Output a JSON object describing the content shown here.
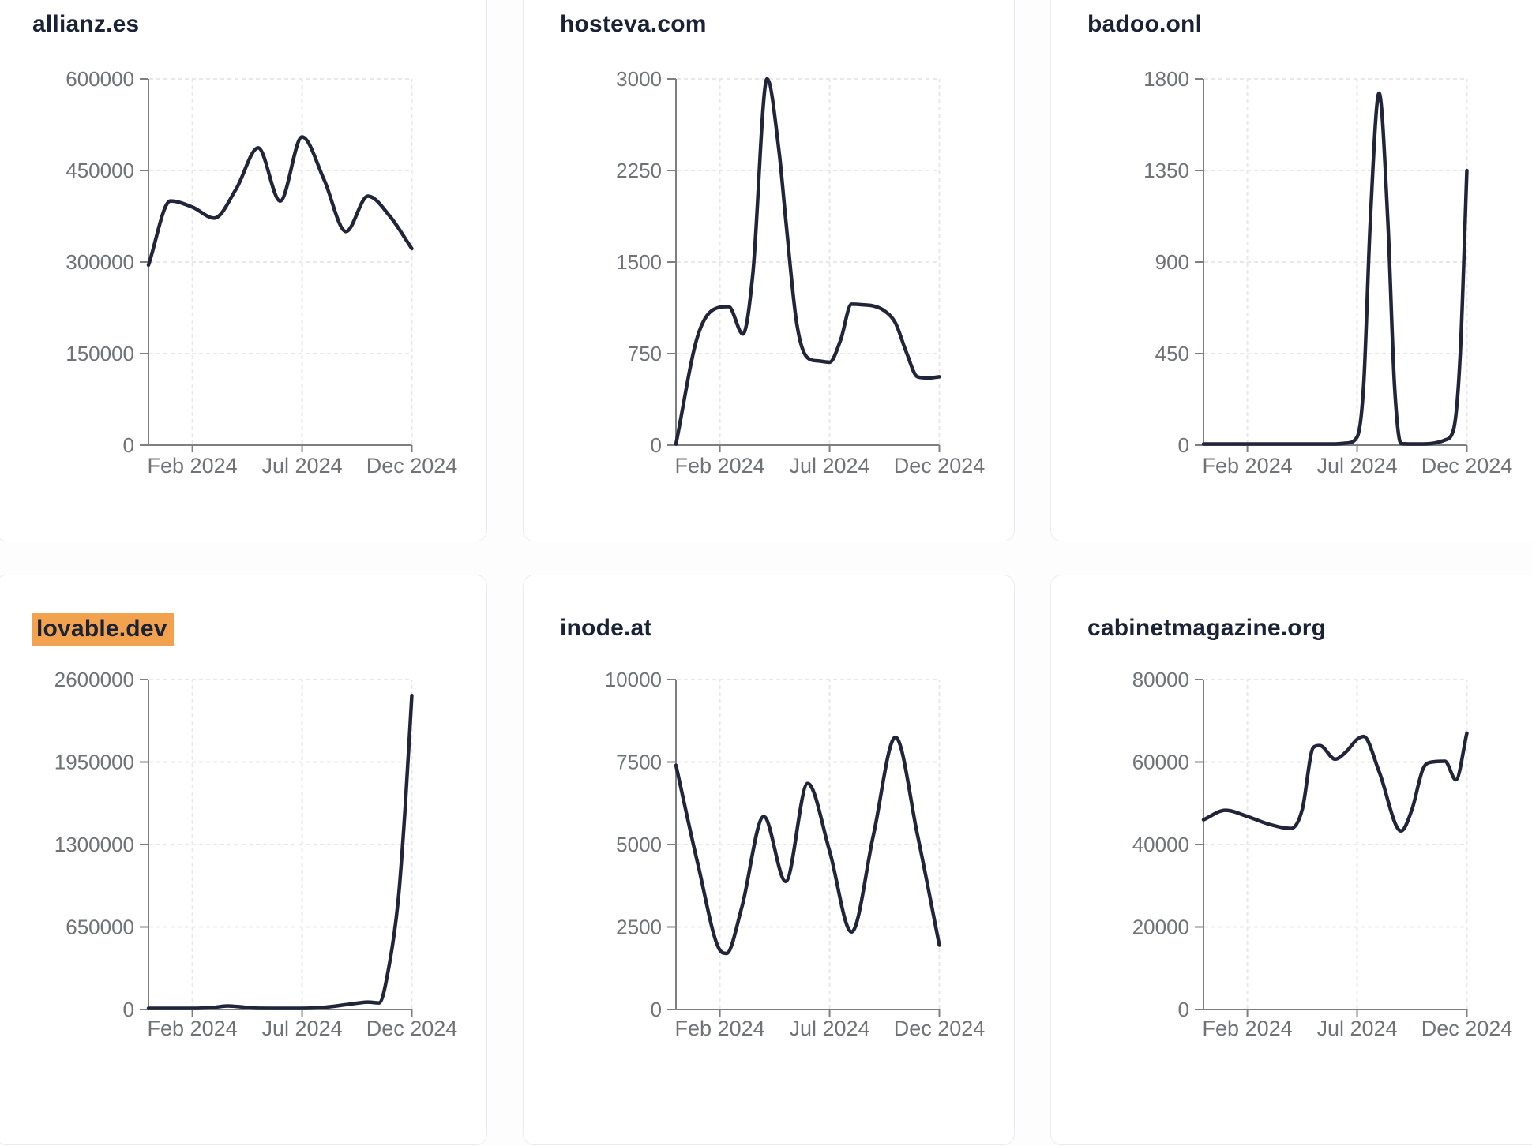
{
  "colors": {
    "page_background": "#fdfdfe",
    "card_background": "#ffffff",
    "card_border": "#e9ebf0",
    "series_line": "#20253a",
    "title_text": "#1a2235",
    "axis_line": "#7d7f83",
    "tick_label_text": "#6f7277",
    "gridline": "#e8e8ea",
    "highlight_background": "#f2a14f"
  },
  "x_axis": {
    "tick_labels": [
      "Feb 2024",
      "Jul 2024",
      "Dec 2024"
    ],
    "tick_months": [
      2,
      7,
      12
    ],
    "domain_months": [
      0,
      12
    ],
    "note": "x unit = months after mid-Dec 2023; range Dec 2023 - Dec 2024"
  },
  "chart_data": [
    {
      "type": "line",
      "title": "allianz.es",
      "highlighted": false,
      "y_max": 600000,
      "y_ticks": [
        0,
        150000,
        300000,
        450000,
        600000
      ],
      "x_tick_labels": [
        "Feb 2024",
        "Jul 2024",
        "Dec 2024"
      ],
      "x": [
        0,
        1,
        2,
        3,
        4,
        5,
        6,
        7,
        8,
        9,
        10,
        11,
        12
      ],
      "values": [
        295000,
        400000,
        390000,
        372000,
        420000,
        487000,
        400000,
        505000,
        435000,
        350000,
        408000,
        375000,
        322000
      ]
    },
    {
      "type": "line",
      "title": "hosteva.com",
      "highlighted": false,
      "y_max": 3000,
      "y_ticks": [
        0,
        750,
        1500,
        2250,
        3000
      ],
      "x_tick_labels": [
        "Feb 2024",
        "Jul 2024",
        "Dec 2024"
      ],
      "x": [
        0,
        1,
        2,
        2.4,
        3.05,
        3.5,
        4.15,
        4.7,
        5,
        5.5,
        6,
        6.5,
        7,
        7.5,
        8,
        8.5,
        9,
        9.5,
        10,
        10.5,
        11,
        11.5,
        12
      ],
      "values": [
        0,
        900,
        1130,
        1135,
        910,
        1400,
        3000,
        2400,
        1850,
        1000,
        715,
        690,
        680,
        860,
        1155,
        1150,
        1140,
        1100,
        1000,
        760,
        560,
        550,
        560
      ]
    },
    {
      "type": "line",
      "title": "badoo.onl",
      "highlighted": false,
      "y_max": 1800,
      "y_ticks": [
        0,
        450,
        900,
        1350,
        1800
      ],
      "x_tick_labels": [
        "Feb 2024",
        "Jul 2024",
        "Dec 2024"
      ],
      "x": [
        0,
        1,
        2,
        3,
        4,
        5,
        6,
        6.5,
        7,
        7.3,
        7.6,
        8,
        8.4,
        8.7,
        9,
        9.5,
        10,
        10.5,
        11,
        11.4,
        11.7,
        12
      ],
      "values": [
        3,
        3,
        3,
        3,
        3,
        3,
        4,
        10,
        40,
        300,
        1100,
        1730,
        1100,
        300,
        8,
        5,
        6,
        10,
        25,
        80,
        450,
        1350
      ]
    },
    {
      "type": "line",
      "title": "lovable.dev",
      "highlighted": true,
      "y_max": 2600000,
      "y_ticks": [
        0,
        650000,
        1300000,
        1950000,
        2600000
      ],
      "x_tick_labels": [
        "Feb 2024",
        "Jul 2024",
        "Dec 2024"
      ],
      "x": [
        0,
        1,
        2,
        3,
        3.6,
        4,
        5,
        6,
        7,
        8,
        9,
        9.6,
        10,
        10.5,
        11,
        11.4,
        11.7,
        12
      ],
      "values": [
        3000,
        3500,
        5000,
        17000,
        28000,
        24000,
        10000,
        7000,
        9000,
        17000,
        38000,
        52000,
        58000,
        52000,
        380000,
        900000,
        1600000,
        2475000
      ]
    },
    {
      "type": "line",
      "title": "inode.at",
      "highlighted": false,
      "y_max": 10000,
      "y_ticks": [
        0,
        2500,
        5000,
        7500,
        10000
      ],
      "x_tick_labels": [
        "Feb 2024",
        "Jul 2024",
        "Dec 2024"
      ],
      "x": [
        0,
        1,
        2,
        2.3,
        3,
        4,
        5,
        6,
        7,
        8,
        9,
        10,
        11,
        12
      ],
      "values": [
        7400,
        4400,
        1800,
        1700,
        3100,
        5850,
        3880,
        6850,
        4800,
        2350,
        5300,
        8250,
        5300,
        1950
      ]
    },
    {
      "type": "line",
      "title": "cabinetmagazine.org",
      "highlighted": false,
      "y_max": 80000,
      "y_ticks": [
        0,
        20000,
        40000,
        60000,
        80000
      ],
      "x_tick_labels": [
        "Feb 2024",
        "Jul 2024",
        "Dec 2024"
      ],
      "x": [
        0,
        1,
        2,
        3,
        4,
        4.5,
        5,
        5.3,
        6,
        6.5,
        7,
        7.3,
        8,
        9,
        9.5,
        10,
        10.4,
        11,
        11.5,
        12
      ],
      "values": [
        46000,
        48300,
        46800,
        44900,
        43900,
        48500,
        63500,
        64000,
        60700,
        62500,
        65500,
        66200,
        57700,
        43300,
        48500,
        58300,
        60000,
        60200,
        55700,
        67000
      ]
    }
  ]
}
